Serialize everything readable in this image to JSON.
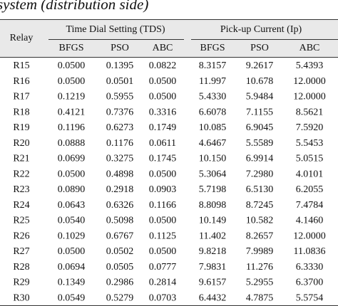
{
  "caption": "system (distribution side)",
  "table": {
    "relay_header": "Relay",
    "groups": [
      "Time Dial Setting (TDS)",
      "Pick-up Current (Ip)"
    ],
    "subheaders": [
      "BFGS",
      "PSO",
      "ABC",
      "BFGS",
      "PSO",
      "ABC"
    ],
    "rows": [
      [
        "R15",
        "0.0500",
        "0.1395",
        "0.0822",
        "8.3157",
        "9.2617",
        "5.4393"
      ],
      [
        "R16",
        "0.0500",
        "0.0501",
        "0.0500",
        "11.997",
        "10.678",
        "12.0000"
      ],
      [
        "R17",
        "0.1219",
        "0.5955",
        "0.0500",
        "5.4330",
        "5.9484",
        "12.0000"
      ],
      [
        "R18",
        "0.4121",
        "0.7376",
        "0.3316",
        "6.6078",
        "7.1155",
        "8.5621"
      ],
      [
        "R19",
        "0.1196",
        "0.6273",
        "0.1749",
        "10.085",
        "6.9045",
        "7.5920"
      ],
      [
        "R20",
        "0.0888",
        "0.1176",
        "0.0611",
        "4.6467",
        "5.5589",
        "5.5453"
      ],
      [
        "R21",
        "0.0699",
        "0.3275",
        "0.1745",
        "10.150",
        "6.9914",
        "5.0515"
      ],
      [
        "R22",
        "0.0500",
        "0.4898",
        "0.0500",
        "5.3064",
        "7.2980",
        "4.0101"
      ],
      [
        "R23",
        "0.0890",
        "0.2918",
        "0.0903",
        "5.7198",
        "6.5130",
        "6.2055"
      ],
      [
        "R24",
        "0.0643",
        "0.6326",
        "0.1166",
        "8.8098",
        "8.7245",
        "7.4784"
      ],
      [
        "R25",
        "0.0540",
        "0.5098",
        "0.0500",
        "10.149",
        "10.582",
        "4.1460"
      ],
      [
        "R26",
        "0.1029",
        "0.6767",
        "0.1125",
        "11.402",
        "8.2657",
        "12.0000"
      ],
      [
        "R27",
        "0.0500",
        "0.0502",
        "0.0500",
        "9.8218",
        "7.9989",
        "11.0836"
      ],
      [
        "R28",
        "0.0694",
        "0.0505",
        "0.0777",
        "7.9831",
        "11.276",
        "6.3330"
      ],
      [
        "R29",
        "0.1349",
        "0.2986",
        "0.2814",
        "9.6157",
        "5.2955",
        "6.3700"
      ],
      [
        "R30",
        "0.0549",
        "0.5279",
        "0.0703",
        "6.4432",
        "4.7875",
        "5.5754"
      ]
    ]
  }
}
